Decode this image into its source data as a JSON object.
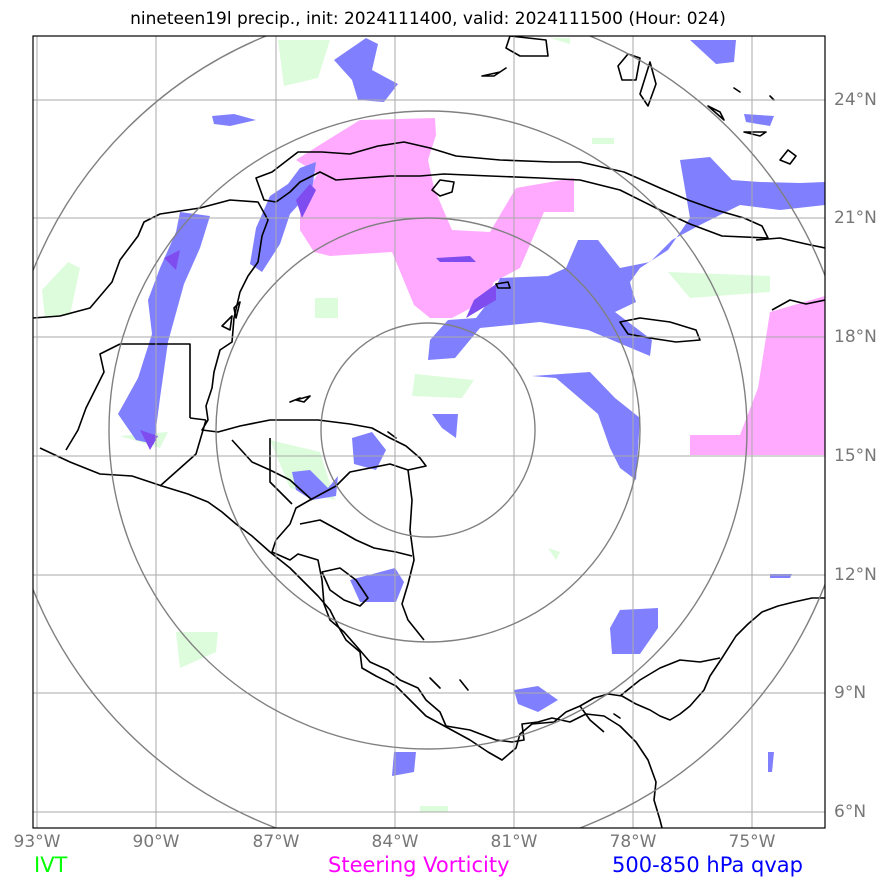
{
  "title": "nineteen19l precip., init: 2024111400, valid: 2024111500 (Hour: 024)",
  "map": {
    "lon_range": [
      -93.2,
      -73.2
    ],
    "lat_range": [
      5.7,
      25.4
    ],
    "lon_ticks": [
      "93°W",
      "90°W",
      "87°W",
      "84°W",
      "81°W",
      "78°W",
      "75°W"
    ],
    "lat_ticks": [
      "24°N",
      "21°N",
      "18°N",
      "15°N",
      "12°N",
      "9°N",
      "6°N"
    ],
    "range_rings_center": {
      "lon": -83.2,
      "lat": 15.7
    },
    "range_ring_count": 4,
    "grid": true
  },
  "legend": {
    "ivt": {
      "label": "IVT",
      "color": "#00ff00"
    },
    "vorticity": {
      "label": "Steering Vorticity",
      "color": "#ff00ff"
    },
    "qvap": {
      "label": "500-850 hPa qvap",
      "color": "#0000ff"
    }
  },
  "colors": {
    "ivt_fill": "#dcfcdc",
    "vorticity_fill": "#ffaaff",
    "qvap_fill": "#8080ff",
    "gridlines": "#aaaaaa",
    "rings": "#808080",
    "coastline": "#000000"
  }
}
